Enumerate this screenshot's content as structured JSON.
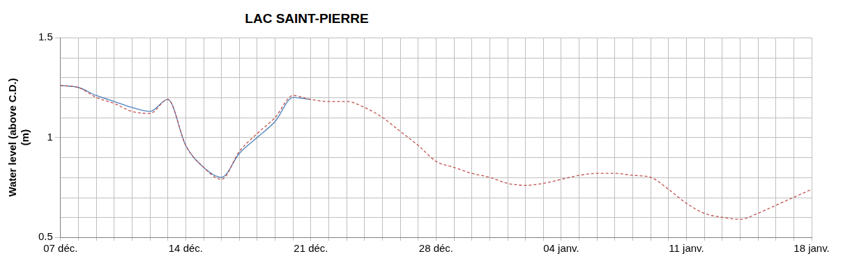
{
  "chart_data": {
    "type": "line",
    "title": "LAC SAINT-PIERRE",
    "y_label": [
      "Water level (above C.D.)",
      "(m)"
    ],
    "categories": [
      "07 déc.",
      null,
      null,
      null,
      null,
      null,
      null,
      "14 déc.",
      null,
      null,
      null,
      null,
      null,
      null,
      "21 déc.",
      null,
      null,
      null,
      null,
      null,
      null,
      "28 déc.",
      null,
      null,
      null,
      null,
      null,
      null,
      "04 janv.",
      null,
      null,
      null,
      null,
      null,
      null,
      "11 janv.",
      null,
      null,
      null,
      null,
      null,
      null,
      "18 janv."
    ],
    "series": [
      {
        "color": "#c0504d",
        "line_style": "dashed",
        "values": [
          1.26,
          1.25,
          1.2,
          1.17,
          1.13,
          1.12,
          1.19,
          0.96,
          0.85,
          0.79,
          0.93,
          1.02,
          1.1,
          1.21,
          1.19,
          1.18,
          1.18,
          1.15,
          1.1,
          1.03,
          0.96,
          0.88,
          0.85,
          0.82,
          0.8,
          0.77,
          0.76,
          0.77,
          0.79,
          0.81,
          0.82,
          0.82,
          0.81,
          0.8,
          0.74,
          0.67,
          0.62,
          0.6,
          0.59,
          0.62,
          0.66,
          0.7,
          0.74
        ]
      },
      {
        "color": "#4f81bd",
        "line_style": "solid",
        "values": [
          1.26,
          1.25,
          1.21,
          1.18,
          1.15,
          1.13,
          1.19,
          0.96,
          0.85,
          0.8,
          0.92,
          1.0,
          1.08,
          1.2,
          1.19,
          null,
          null,
          null,
          null,
          null,
          null,
          null,
          null,
          null,
          null,
          null,
          null,
          null,
          null,
          null,
          null,
          null,
          null,
          null,
          null,
          null,
          null,
          null,
          null,
          null,
          null,
          null,
          null
        ]
      }
    ],
    "ylim": [
      0.5,
      1.5
    ],
    "yticks": [
      0.5,
      1,
      1.5
    ],
    "grid": true
  }
}
